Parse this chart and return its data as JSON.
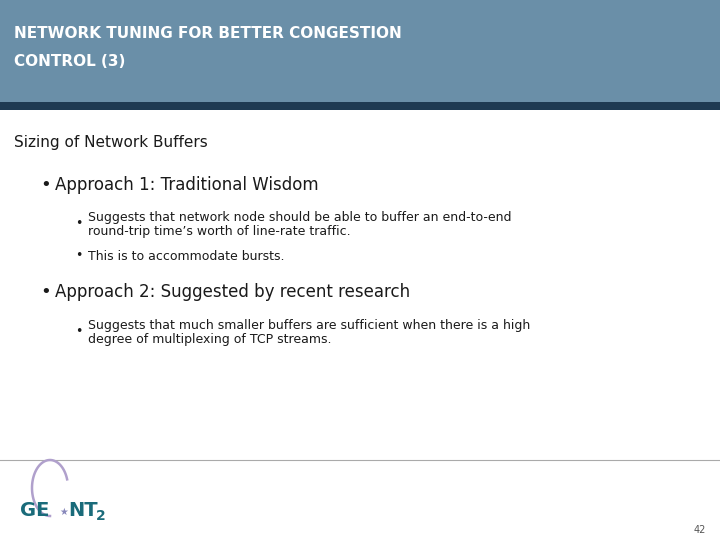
{
  "title_line1": "NETWORK TUNING FOR BETTER CONGESTION",
  "title_line2": "CONTROL (3)",
  "title_bg_color": "#6a8fa8",
  "title_border_color": "#1e3a52",
  "title_text_color": "#ffffff",
  "bg_color": "#f0f0f0",
  "content_bg_color": "#ffffff",
  "section_heading": "Sizing of Network Buffers",
  "section_heading_color": "#1a1a1a",
  "bullet1": "Approach 1: Traditional Wisdom",
  "bullet1_color": "#1a1a1a",
  "sub_bullet1a_line1": "Suggests that network node should be able to buffer an end-to-end",
  "sub_bullet1a_line2": "round-trip time’s worth of line-rate traffic.",
  "sub_bullet1b": "This is to accommodate bursts.",
  "bullet2": "Approach 2: Suggested by recent research",
  "bullet2_color": "#1a1a1a",
  "sub_bullet2a_line1": "Suggests that much smaller buffers are sufficient when there is a high",
  "sub_bullet2a_line2": "degree of multiplexing of TCP streams.",
  "footer_line_color": "#aaaaaa",
  "page_number": "42",
  "geant_text_color": "#1a6b7a",
  "title_fontsize": 11,
  "section_fontsize": 11,
  "bullet_fontsize": 11,
  "sub_bullet_fontsize": 9
}
